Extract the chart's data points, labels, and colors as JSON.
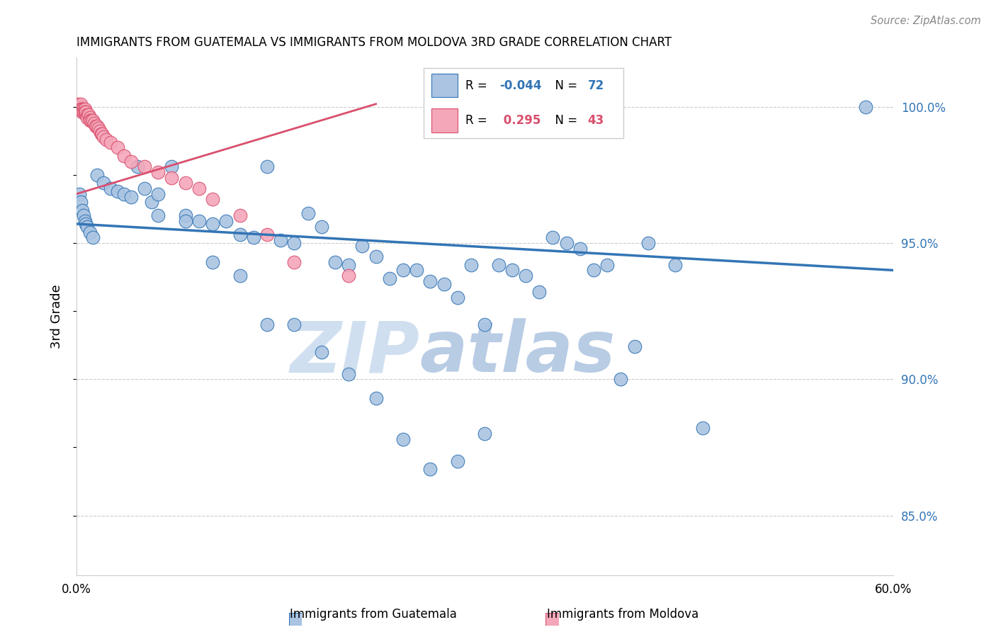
{
  "title": "IMMIGRANTS FROM GUATEMALA VS IMMIGRANTS FROM MOLDOVA 3RD GRADE CORRELATION CHART",
  "source": "Source: ZipAtlas.com",
  "ylabel": "3rd Grade",
  "ylabel_right_ticks": [
    "85.0%",
    "90.0%",
    "95.0%",
    "100.0%"
  ],
  "ylabel_right_values": [
    0.85,
    0.9,
    0.95,
    1.0
  ],
  "xmin": 0.0,
  "xmax": 0.6,
  "ymin": 0.828,
  "ymax": 1.018,
  "color_blue": "#aac4e2",
  "color_pink": "#f4a7b9",
  "trendline_blue": "#3375b5",
  "trendline_pink": "#d94f6e",
  "watermark_zip": "ZIP",
  "watermark_atlas": "atlas",
  "blue_x": [
    0.002,
    0.003,
    0.004,
    0.005,
    0.006,
    0.007,
    0.008,
    0.01,
    0.012,
    0.015,
    0.02,
    0.025,
    0.03,
    0.035,
    0.04,
    0.045,
    0.05,
    0.055,
    0.06,
    0.07,
    0.08,
    0.09,
    0.1,
    0.11,
    0.12,
    0.13,
    0.14,
    0.15,
    0.16,
    0.17,
    0.18,
    0.19,
    0.2,
    0.21,
    0.22,
    0.23,
    0.24,
    0.25,
    0.26,
    0.27,
    0.28,
    0.29,
    0.3,
    0.31,
    0.32,
    0.33,
    0.34,
    0.35,
    0.36,
    0.37,
    0.38,
    0.39,
    0.4,
    0.41,
    0.42,
    0.44,
    0.46,
    0.06,
    0.08,
    0.1,
    0.12,
    0.14,
    0.16,
    0.18,
    0.2,
    0.22,
    0.24,
    0.26,
    0.28,
    0.3,
    0.58
  ],
  "blue_y": [
    0.968,
    0.965,
    0.962,
    0.96,
    0.958,
    0.957,
    0.956,
    0.954,
    0.952,
    0.975,
    0.972,
    0.97,
    0.969,
    0.968,
    0.967,
    0.978,
    0.97,
    0.965,
    0.968,
    0.978,
    0.96,
    0.958,
    0.957,
    0.958,
    0.953,
    0.952,
    0.978,
    0.951,
    0.95,
    0.961,
    0.956,
    0.943,
    0.942,
    0.949,
    0.945,
    0.937,
    0.94,
    0.94,
    0.936,
    0.935,
    0.93,
    0.942,
    0.92,
    0.942,
    0.94,
    0.938,
    0.932,
    0.952,
    0.95,
    0.948,
    0.94,
    0.942,
    0.9,
    0.912,
    0.95,
    0.942,
    0.882,
    0.96,
    0.958,
    0.943,
    0.938,
    0.92,
    0.92,
    0.91,
    0.902,
    0.893,
    0.878,
    0.867,
    0.87,
    0.88,
    1.0
  ],
  "pink_x": [
    0.001,
    0.002,
    0.002,
    0.003,
    0.003,
    0.004,
    0.004,
    0.005,
    0.005,
    0.006,
    0.006,
    0.007,
    0.007,
    0.008,
    0.008,
    0.009,
    0.01,
    0.01,
    0.011,
    0.012,
    0.013,
    0.014,
    0.015,
    0.016,
    0.017,
    0.018,
    0.019,
    0.02,
    0.022,
    0.025,
    0.03,
    0.035,
    0.04,
    0.05,
    0.06,
    0.07,
    0.08,
    0.09,
    0.1,
    0.12,
    0.14,
    0.16,
    0.2
  ],
  "pink_y": [
    1.001,
    1.0,
    0.999,
    1.001,
    0.999,
    0.999,
    0.998,
    0.999,
    0.998,
    0.999,
    0.998,
    0.997,
    0.998,
    0.997,
    0.996,
    0.997,
    0.996,
    0.995,
    0.995,
    0.995,
    0.994,
    0.993,
    0.993,
    0.992,
    0.991,
    0.99,
    0.99,
    0.989,
    0.988,
    0.987,
    0.985,
    0.982,
    0.98,
    0.978,
    0.976,
    0.974,
    0.972,
    0.97,
    0.966,
    0.96,
    0.953,
    0.943,
    0.938
  ],
  "blue_trend_x": [
    0.0,
    0.6
  ],
  "blue_trend_y": [
    0.957,
    0.94
  ],
  "pink_trend_x": [
    0.0,
    0.22
  ],
  "pink_trend_y": [
    0.968,
    1.001
  ]
}
